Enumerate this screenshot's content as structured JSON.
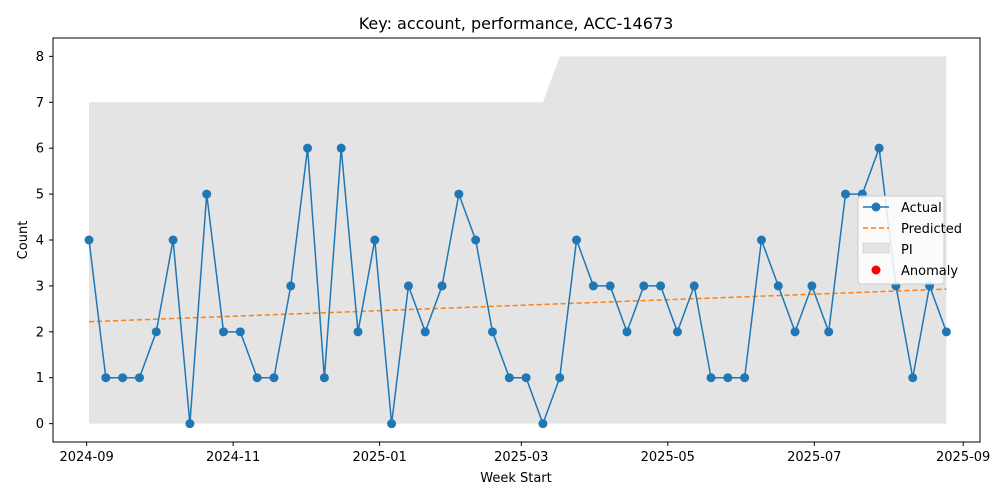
{
  "chart_data": {
    "type": "line",
    "title": "Key: account, performance, ACC-14673",
    "xlabel": "Week Start",
    "ylabel": "Count",
    "ylim": [
      -0.4,
      8.4
    ],
    "xlim": [
      "2024-08-18",
      "2025-09-08"
    ],
    "x_tick_labels": [
      "2024-09",
      "2024-11",
      "2025-01",
      "2025-03",
      "2025-05",
      "2025-07",
      "2025-09"
    ],
    "x_tick_dates": [
      "2024-09-01",
      "2024-11-01",
      "2025-01-01",
      "2025-03-01",
      "2025-05-01",
      "2025-07-01",
      "2025-09-01"
    ],
    "y_ticks": [
      0,
      1,
      2,
      3,
      4,
      5,
      6,
      7,
      8
    ],
    "x": [
      "2024-09-02",
      "2024-09-09",
      "2024-09-16",
      "2024-09-23",
      "2024-09-30",
      "2024-10-07",
      "2024-10-14",
      "2024-10-21",
      "2024-10-28",
      "2024-11-04",
      "2024-11-11",
      "2024-11-18",
      "2024-11-25",
      "2024-12-02",
      "2024-12-09",
      "2024-12-16",
      "2024-12-23",
      "2024-12-30",
      "2025-01-06",
      "2025-01-13",
      "2025-01-20",
      "2025-01-27",
      "2025-02-03",
      "2025-02-10",
      "2025-02-17",
      "2025-02-24",
      "2025-03-03",
      "2025-03-10",
      "2025-03-17",
      "2025-03-24",
      "2025-03-31",
      "2025-04-07",
      "2025-04-14",
      "2025-04-21",
      "2025-04-28",
      "2025-05-05",
      "2025-05-12",
      "2025-05-19",
      "2025-05-26",
      "2025-06-02",
      "2025-06-09",
      "2025-06-16",
      "2025-06-23",
      "2025-06-30",
      "2025-07-07",
      "2025-07-14",
      "2025-07-21",
      "2025-07-28",
      "2025-08-04",
      "2025-08-11",
      "2025-08-18",
      "2025-08-25"
    ],
    "series": [
      {
        "name": "Actual",
        "style": "solid line with circle markers",
        "color": "#1f77b4",
        "values": [
          4,
          1,
          1,
          1,
          2,
          4,
          0,
          5,
          2,
          2,
          1,
          1,
          3,
          6,
          1,
          6,
          2,
          4,
          0,
          3,
          2,
          3,
          5,
          4,
          2,
          1,
          1,
          0,
          1,
          4,
          3,
          3,
          2,
          3,
          3,
          2,
          3,
          1,
          1,
          1,
          4,
          3,
          2,
          3,
          2,
          5,
          5,
          6,
          3,
          1,
          3,
          2
        ]
      },
      {
        "name": "Predicted",
        "style": "dashed line",
        "color": "#ff7f0e",
        "values_linear": {
          "start": 2.22,
          "end": 2.93
        }
      },
      {
        "name": "PI",
        "style": "shaded band",
        "color": "#cccccc",
        "lower": 0,
        "upper_steps": [
          {
            "from": "2024-09-02",
            "to": "2025-03-10",
            "value": 7
          },
          {
            "from": "2025-03-17",
            "to": "2025-08-25",
            "value": 8
          }
        ]
      },
      {
        "name": "Anomaly",
        "style": "red dots",
        "color": "#ff0000",
        "points": []
      }
    ],
    "legend": {
      "placement": "right",
      "entries": [
        "Actual",
        "Predicted",
        "PI",
        "Anomaly"
      ]
    },
    "grid": false
  }
}
